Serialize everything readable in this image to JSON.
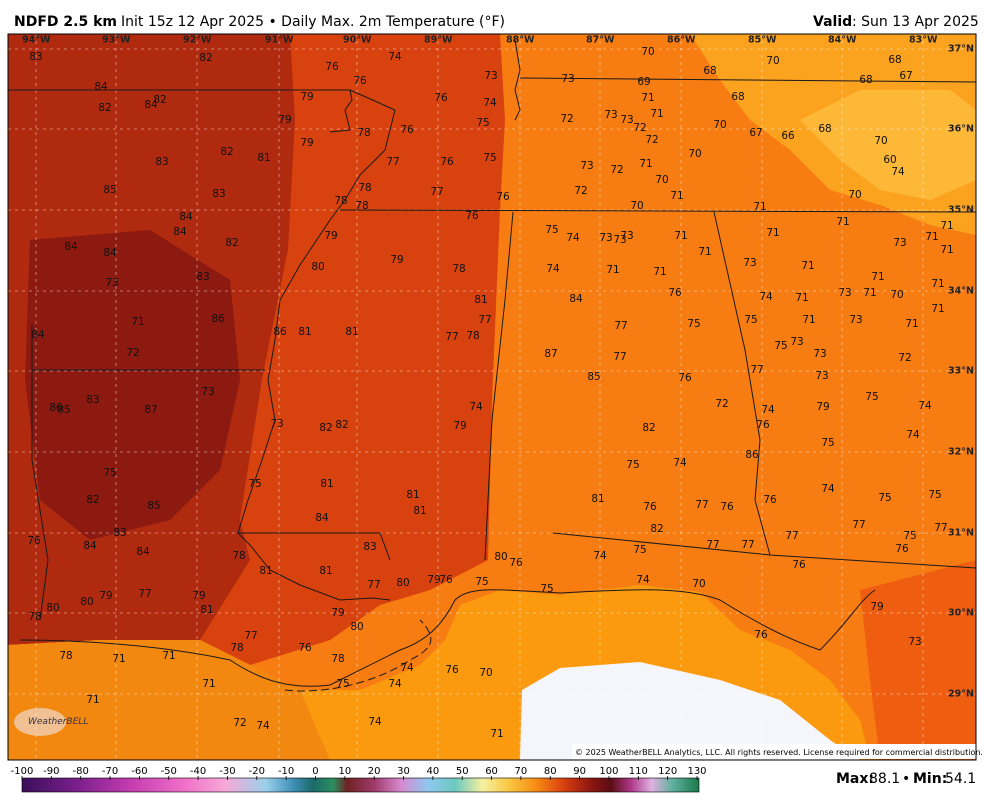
{
  "header": {
    "title": "NDFD 2.5 km",
    "subtitle": "Init 15z 12 Apr 2025 • Daily Max. 2m Temperature (°F)",
    "valid_label": "Valid",
    "valid_date": ": Sun 13 Apr 2025"
  },
  "map": {
    "longitudes": [
      "94°W",
      "93°W",
      "92°W",
      "91°W",
      "90°W",
      "89°W",
      "88°W",
      "87°W",
      "86°W",
      "85°W",
      "84°W",
      "83°W"
    ],
    "latitudes": [
      "37°N",
      "36°N",
      "35°N",
      "34°N",
      "33°N",
      "32°N",
      "31°N",
      "30°N",
      "29°N"
    ],
    "temperatures": [
      83,
      82,
      76,
      74,
      76,
      73,
      73,
      69,
      70,
      68,
      70,
      68,
      68,
      67,
      84,
      82,
      84,
      82,
      79,
      76,
      74,
      71,
      68,
      79,
      75,
      72,
      73,
      73,
      71,
      72,
      70,
      67,
      66,
      68,
      78,
      76,
      79,
      72,
      70,
      70,
      82,
      81,
      83,
      77,
      76,
      75,
      73,
      72,
      71,
      70,
      60,
      74,
      85,
      83,
      78,
      77,
      76,
      72,
      71,
      70,
      78,
      78,
      70,
      71,
      84,
      84,
      82,
      79,
      76,
      75,
      74,
      73,
      73,
      73,
      71,
      71,
      71,
      71,
      73,
      71,
      71,
      84,
      84,
      80,
      79,
      78,
      74,
      71,
      71,
      71,
      73,
      71,
      71,
      71,
      73,
      83,
      84,
      76,
      74,
      71,
      73,
      71,
      70,
      71,
      71,
      86,
      84,
      86,
      81,
      81,
      81,
      77,
      77,
      78,
      77,
      75,
      75,
      71,
      73,
      71,
      72,
      87,
      77,
      75,
      73,
      73,
      72,
      73,
      83,
      85,
      86,
      87,
      85,
      76,
      77,
      73,
      72,
      74,
      75,
      74,
      74,
      79,
      79,
      73,
      82,
      82,
      82,
      76,
      75,
      74,
      75,
      86,
      75,
      74,
      75,
      81,
      81,
      81,
      82,
      85,
      84,
      81,
      76,
      77,
      76,
      76,
      74,
      75,
      75,
      76,
      84,
      83,
      84,
      83,
      82,
      77,
      75,
      77,
      78,
      81,
      81,
      80,
      76,
      74,
      75,
      77,
      77,
      77,
      76,
      77,
      80,
      79,
      76,
      75,
      75,
      74,
      70,
      76,
      77,
      79,
      80,
      79,
      80,
      78,
      81,
      79,
      80,
      79,
      77,
      78,
      76,
      78,
      76,
      73,
      78,
      71,
      71,
      74,
      76,
      70,
      71,
      75,
      74,
      71,
      72,
      74,
      74,
      71,
      72
    ],
    "watermark": "WeatherBELL",
    "copyright": "© 2025 WeatherBELL Analytics, LLC. All rights reserved. License required for commercial distribution."
  },
  "colorbar": {
    "ticks": [
      -100,
      -90,
      -80,
      -70,
      -60,
      -50,
      -40,
      -30,
      -20,
      -10,
      0,
      10,
      20,
      30,
      40,
      50,
      60,
      70,
      80,
      90,
      100,
      110,
      120,
      130
    ]
  },
  "footer": {
    "max_label": "Max:",
    "max_value": 88.1,
    "separator": "•",
    "min_label": "Min:",
    "min_value": 54.1
  }
}
